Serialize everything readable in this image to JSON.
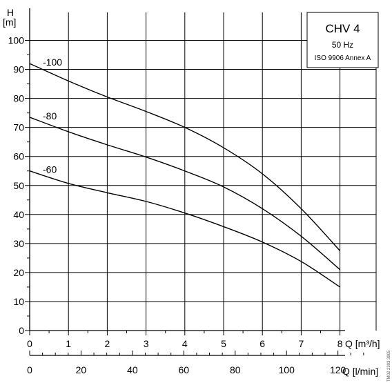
{
  "chart_data": {
    "type": "line",
    "title": "CHV 4",
    "subtitle": "50 Hz",
    "standard": "ISO 9906 Annex A",
    "doc_code": "TM02 2303 3905",
    "y_axis": {
      "label_top": "H",
      "label_unit": "[m]",
      "range": [
        0,
        100
      ],
      "ticks": [
        0,
        10,
        20,
        30,
        40,
        50,
        60,
        70,
        80,
        90,
        100
      ],
      "tick_labels": [
        "0",
        "10",
        "20",
        "30",
        "40",
        "50",
        "60",
        "70",
        "80",
        "90",
        "100"
      ]
    },
    "x_axis": {
      "label": "Q [m³/h]",
      "range": [
        0,
        8.8
      ],
      "ticks": [
        0,
        1,
        2,
        3,
        4,
        5,
        6,
        7,
        8
      ],
      "tick_labels": [
        "0",
        "1",
        "2",
        "3",
        "4",
        "5",
        "6",
        "7",
        "8"
      ]
    },
    "x2_axis": {
      "label": "Q [l/min]",
      "range": [
        0,
        146.67
      ],
      "ticks": [
        0,
        20,
        40,
        60,
        80,
        100,
        120
      ],
      "tick_labels": [
        "0",
        "20",
        "40",
        "60",
        "80",
        "100",
        "120"
      ]
    },
    "grid": true,
    "series": [
      {
        "name": "-100",
        "x": [
          0,
          1,
          2,
          3,
          4,
          5,
          6,
          7,
          8
        ],
        "y": [
          92,
          86,
          80.5,
          75.5,
          70,
          63,
          54,
          42,
          27.5
        ]
      },
      {
        "name": "-80",
        "x": [
          0,
          1,
          2,
          3,
          4,
          5,
          6,
          7,
          8
        ],
        "y": [
          73.5,
          68.5,
          64,
          59.8,
          55,
          49.5,
          42,
          32.5,
          21
        ]
      },
      {
        "name": "-60",
        "x": [
          0,
          1,
          2,
          3,
          4,
          5,
          6,
          7,
          8
        ],
        "y": [
          55,
          50.7,
          47.5,
          44.5,
          40.5,
          35.8,
          30.5,
          23.8,
          15
        ]
      }
    ]
  }
}
